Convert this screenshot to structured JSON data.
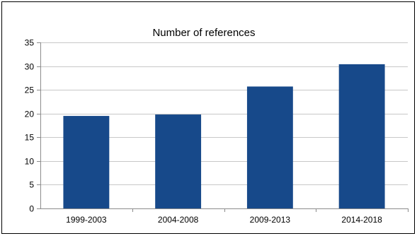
{
  "chart_data": {
    "type": "bar",
    "title": "Number of references",
    "categories": [
      "1999-2003",
      "2004-2008",
      "2009-2013",
      "2014-2018"
    ],
    "values": [
      19.5,
      19.8,
      25.7,
      30.4
    ],
    "xlabel": "",
    "ylabel": "",
    "ylim": [
      0,
      35
    ],
    "yticks": [
      0,
      5,
      10,
      15,
      20,
      25,
      30,
      35
    ],
    "grid": true,
    "legend": "none",
    "bar_color": "#17498a",
    "grid_color": "#c8c8c8"
  }
}
